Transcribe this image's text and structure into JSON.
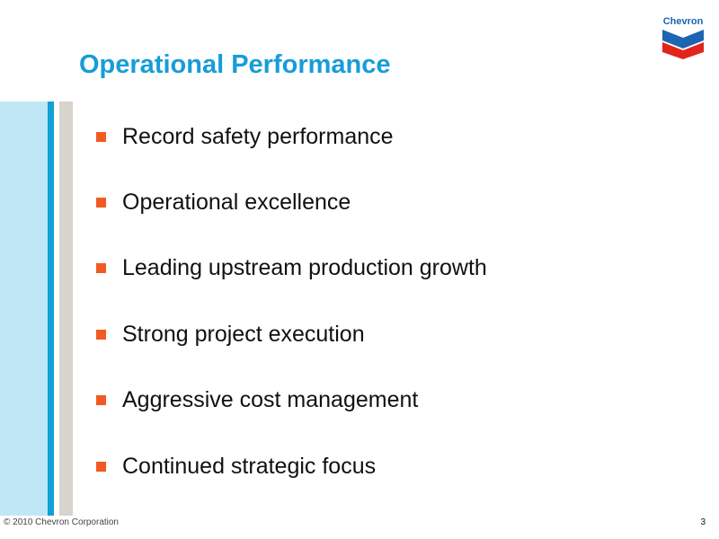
{
  "slide": {
    "title": "Operational Performance",
    "logo_text": "Chevron",
    "bullets": [
      "Record safety performance",
      "Operational excellence",
      "Leading upstream production growth",
      "Strong project execution",
      "Aggressive cost management",
      "Continued strategic focus"
    ],
    "footer": "© 2010 Chevron Corporation",
    "page_number": "3"
  },
  "colors": {
    "title": "#169dd8",
    "bullet_square": "#f15a22",
    "band_light": "#bfe7f5",
    "band_blue": "#0fa0d8",
    "band_gray": "#d7d3cd",
    "logo_blue": "#1d64b2",
    "logo_red": "#e1251b"
  },
  "icons": {
    "logo": "chevron-logo-icon",
    "bullet": "orange-square-bullet-icon"
  }
}
